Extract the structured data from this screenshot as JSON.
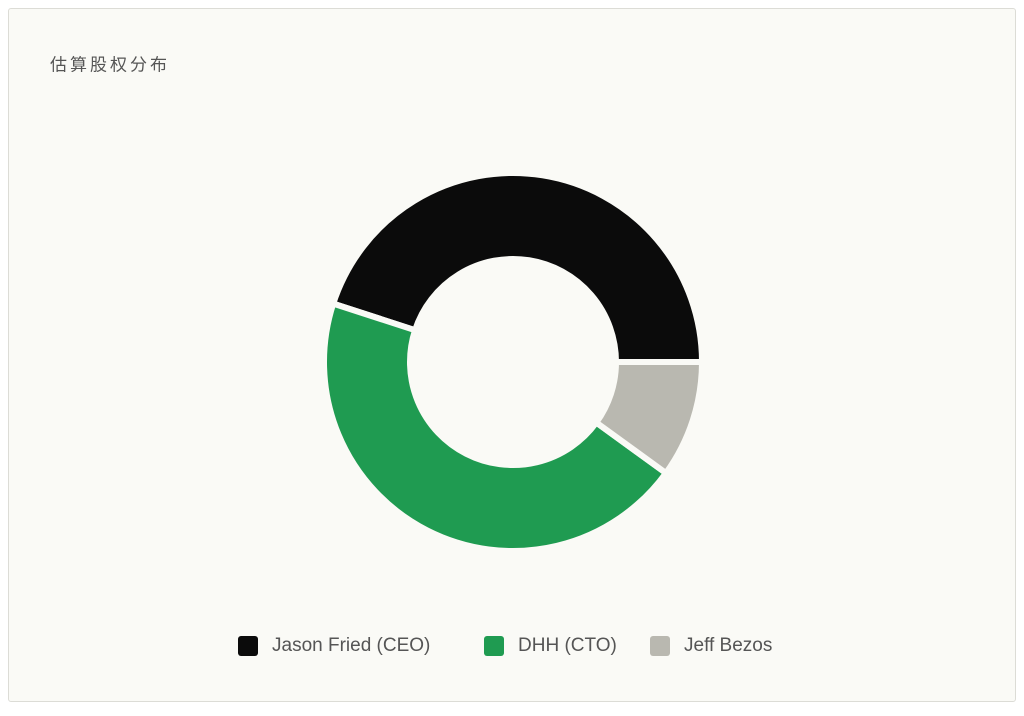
{
  "chart_data": {
    "type": "donut",
    "title": "估算股权分布",
    "categories": [
      "Jason Fried (CEO)",
      "DHH (CTO)",
      "Jeff Bezos"
    ],
    "values": [
      45,
      45,
      10
    ],
    "colors": [
      "#0b0b0b",
      "#1f9b51",
      "#b9b8b0"
    ],
    "legend": "bottom"
  }
}
